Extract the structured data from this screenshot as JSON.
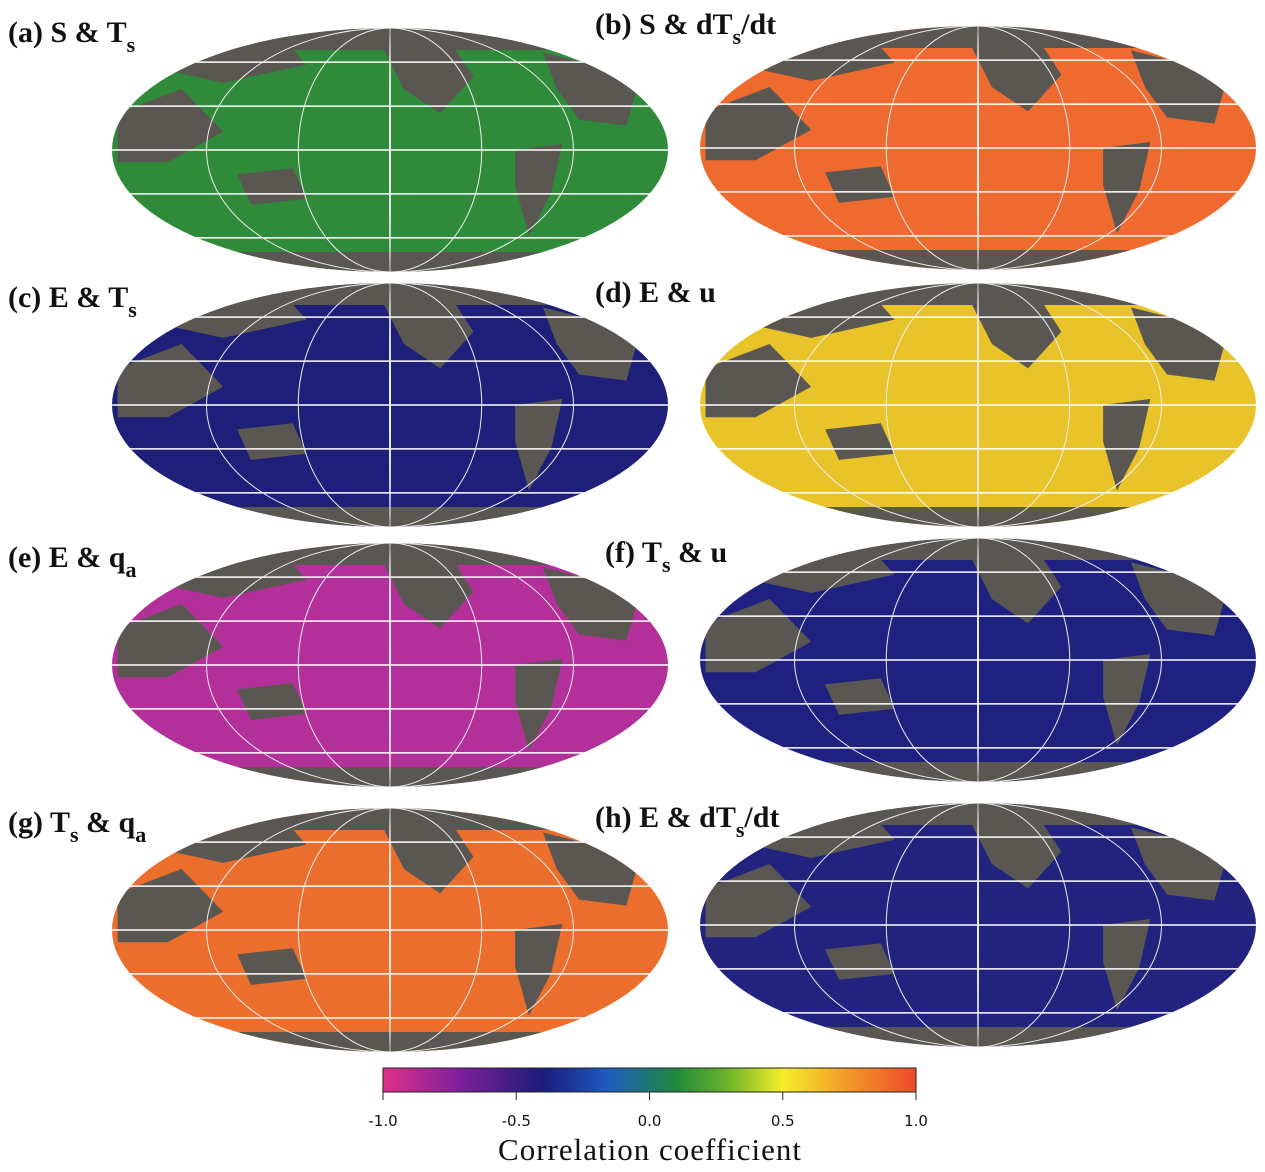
{
  "panels": [
    {
      "label": [
        {
          "text": "(a) S & T"
        },
        {
          "sub": "s"
        }
      ],
      "color": "#2f8a3a"
    },
    {
      "label": [
        {
          "text": "(b) S & dT"
        },
        {
          "sub": "s"
        },
        {
          "text": "/dt"
        }
      ],
      "color": "#ee6a2e"
    },
    {
      "label": [
        {
          "text": "(c) E & T"
        },
        {
          "sub": "s"
        }
      ],
      "color": "#1d1f78"
    },
    {
      "label": [
        {
          "text": "(d) E & u"
        }
      ],
      "color": "#e8c42a"
    },
    {
      "label": [
        {
          "text": "(e) E & q"
        },
        {
          "sub": "a"
        }
      ],
      "color": "#b3309a"
    },
    {
      "label": [
        {
          "text": "(f) T"
        },
        {
          "sub": "s"
        },
        {
          "text": " & u"
        }
      ],
      "color": "#1f2180"
    },
    {
      "label": [
        {
          "text": "(g) T"
        },
        {
          "sub": "s"
        },
        {
          "text": " & q"
        },
        {
          "sub": "a"
        }
      ],
      "color": "#ec6e2c"
    },
    {
      "label": [
        {
          "text": "(h) E & dT"
        },
        {
          "sub": "s"
        },
        {
          "text": "/dt"
        }
      ],
      "color": "#22237e"
    }
  ],
  "colorbar": {
    "label": "Correlation coefficient",
    "xlim": [
      -1,
      1
    ],
    "xticks": [
      {
        "value": -1,
        "label": "-1.0"
      },
      -0.5,
      {
        "value": 0,
        "label": "0.0"
      },
      0.5,
      {
        "value": 1,
        "label": "1.0"
      }
    ]
  }
}
